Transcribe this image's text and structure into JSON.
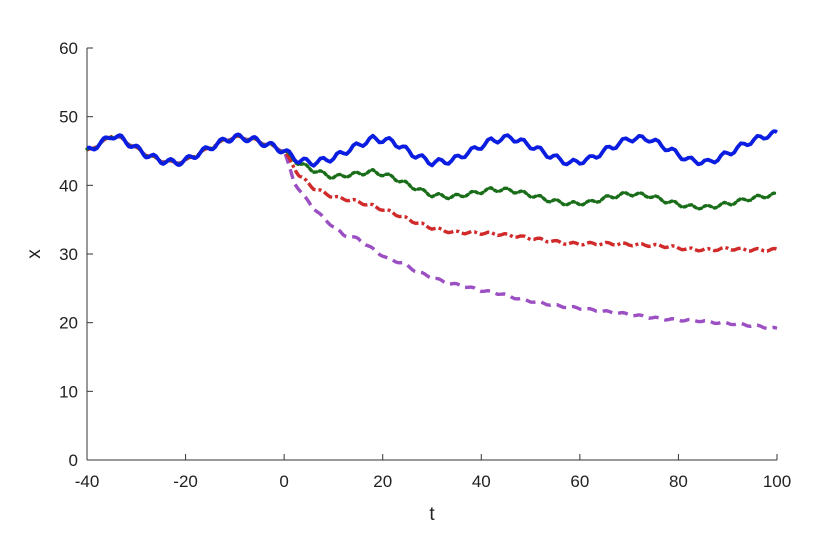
{
  "chart_data": {
    "type": "line",
    "title": "",
    "xlabel": "t",
    "ylabel": "x",
    "xlim": [
      -40,
      100
    ],
    "ylim": [
      0,
      60
    ],
    "xticks": [
      -40,
      -20,
      0,
      20,
      40,
      60,
      80,
      100
    ],
    "yticks": [
      0,
      10,
      20,
      30,
      40,
      50,
      60
    ],
    "xtick_labels": [
      "-40",
      "-20",
      "0",
      "20",
      "40",
      "60",
      "80",
      "100"
    ],
    "ytick_labels": [
      "0",
      "10",
      "20",
      "30",
      "40",
      "50",
      "60"
    ],
    "grid": false,
    "legend": "none",
    "shared_x": [
      -40,
      -37,
      -35,
      -33,
      -30,
      -28,
      -25,
      -22,
      -20,
      -18,
      -15,
      -12,
      -10,
      -8,
      -6,
      -4,
      -2,
      0
    ],
    "shared_y": [
      45.0,
      46.2,
      47.3,
      46.8,
      45.4,
      44.5,
      43.6,
      43.3,
      43.6,
      44.4,
      45.5,
      46.6,
      47.0,
      46.9,
      46.6,
      46.1,
      45.6,
      45.0
    ],
    "series": [
      {
        "color": "#0a1de0",
        "style": "solid",
        "x": [
          0,
          3,
          6,
          10,
          14,
          18,
          22,
          26,
          30,
          34,
          38,
          42,
          46,
          50,
          54,
          58,
          62,
          66,
          70,
          74,
          78,
          82,
          86,
          90,
          94,
          98,
          100
        ],
        "y": [
          45.0,
          43.6,
          43.3,
          44.0,
          45.5,
          46.8,
          46.4,
          44.6,
          43.3,
          43.6,
          45.0,
          46.5,
          47.0,
          45.8,
          44.3,
          43.2,
          43.8,
          45.4,
          46.8,
          46.8,
          45.3,
          43.7,
          43.3,
          44.6,
          46.2,
          47.3,
          47.5
        ]
      },
      {
        "color": "#1a6e1a",
        "style": "dotted",
        "x": [
          0,
          3,
          6,
          10,
          14,
          18,
          22,
          26,
          30,
          34,
          38,
          42,
          46,
          50,
          54,
          58,
          62,
          66,
          70,
          74,
          78,
          82,
          86,
          90,
          94,
          98,
          100
        ],
        "y": [
          45.0,
          43.2,
          42.2,
          41.2,
          41.6,
          42.0,
          41.2,
          39.8,
          38.6,
          38.3,
          38.8,
          39.4,
          39.3,
          38.6,
          37.8,
          37.3,
          37.5,
          38.3,
          38.8,
          38.5,
          37.6,
          36.9,
          36.8,
          37.3,
          38.0,
          38.5,
          38.6
        ]
      },
      {
        "color": "#d12a2a",
        "style": "dashdot",
        "x": [
          0,
          3,
          6,
          10,
          14,
          18,
          22,
          26,
          30,
          34,
          38,
          42,
          46,
          50,
          54,
          58,
          62,
          66,
          70,
          74,
          78,
          82,
          86,
          90,
          94,
          98,
          100
        ],
        "y": [
          44.5,
          41.5,
          39.6,
          38.3,
          37.8,
          37.0,
          36.0,
          34.8,
          33.8,
          33.2,
          33.1,
          33.0,
          32.7,
          32.3,
          31.9,
          31.5,
          31.5,
          31.5,
          31.4,
          31.3,
          31.1,
          30.7,
          30.6,
          30.8,
          30.6,
          30.6,
          30.6
        ]
      },
      {
        "color": "#9b4fc2",
        "style": "dashed",
        "x": [
          0,
          2,
          4,
          6,
          8,
          10,
          12,
          15,
          18,
          21,
          24,
          27,
          30,
          33,
          36,
          40,
          44,
          48,
          52,
          56,
          60,
          64,
          68,
          72,
          76,
          80,
          84,
          88,
          92,
          96,
          100
        ],
        "y": [
          43.0,
          40.5,
          38.4,
          36.7,
          35.2,
          34.0,
          32.8,
          32.2,
          30.7,
          29.3,
          28.7,
          27.4,
          26.6,
          25.8,
          25.4,
          24.7,
          24.2,
          23.4,
          22.9,
          22.4,
          22.1,
          21.7,
          21.4,
          21.0,
          20.6,
          20.4,
          20.3,
          20.0,
          19.8,
          19.5,
          19.1
        ]
      }
    ]
  }
}
